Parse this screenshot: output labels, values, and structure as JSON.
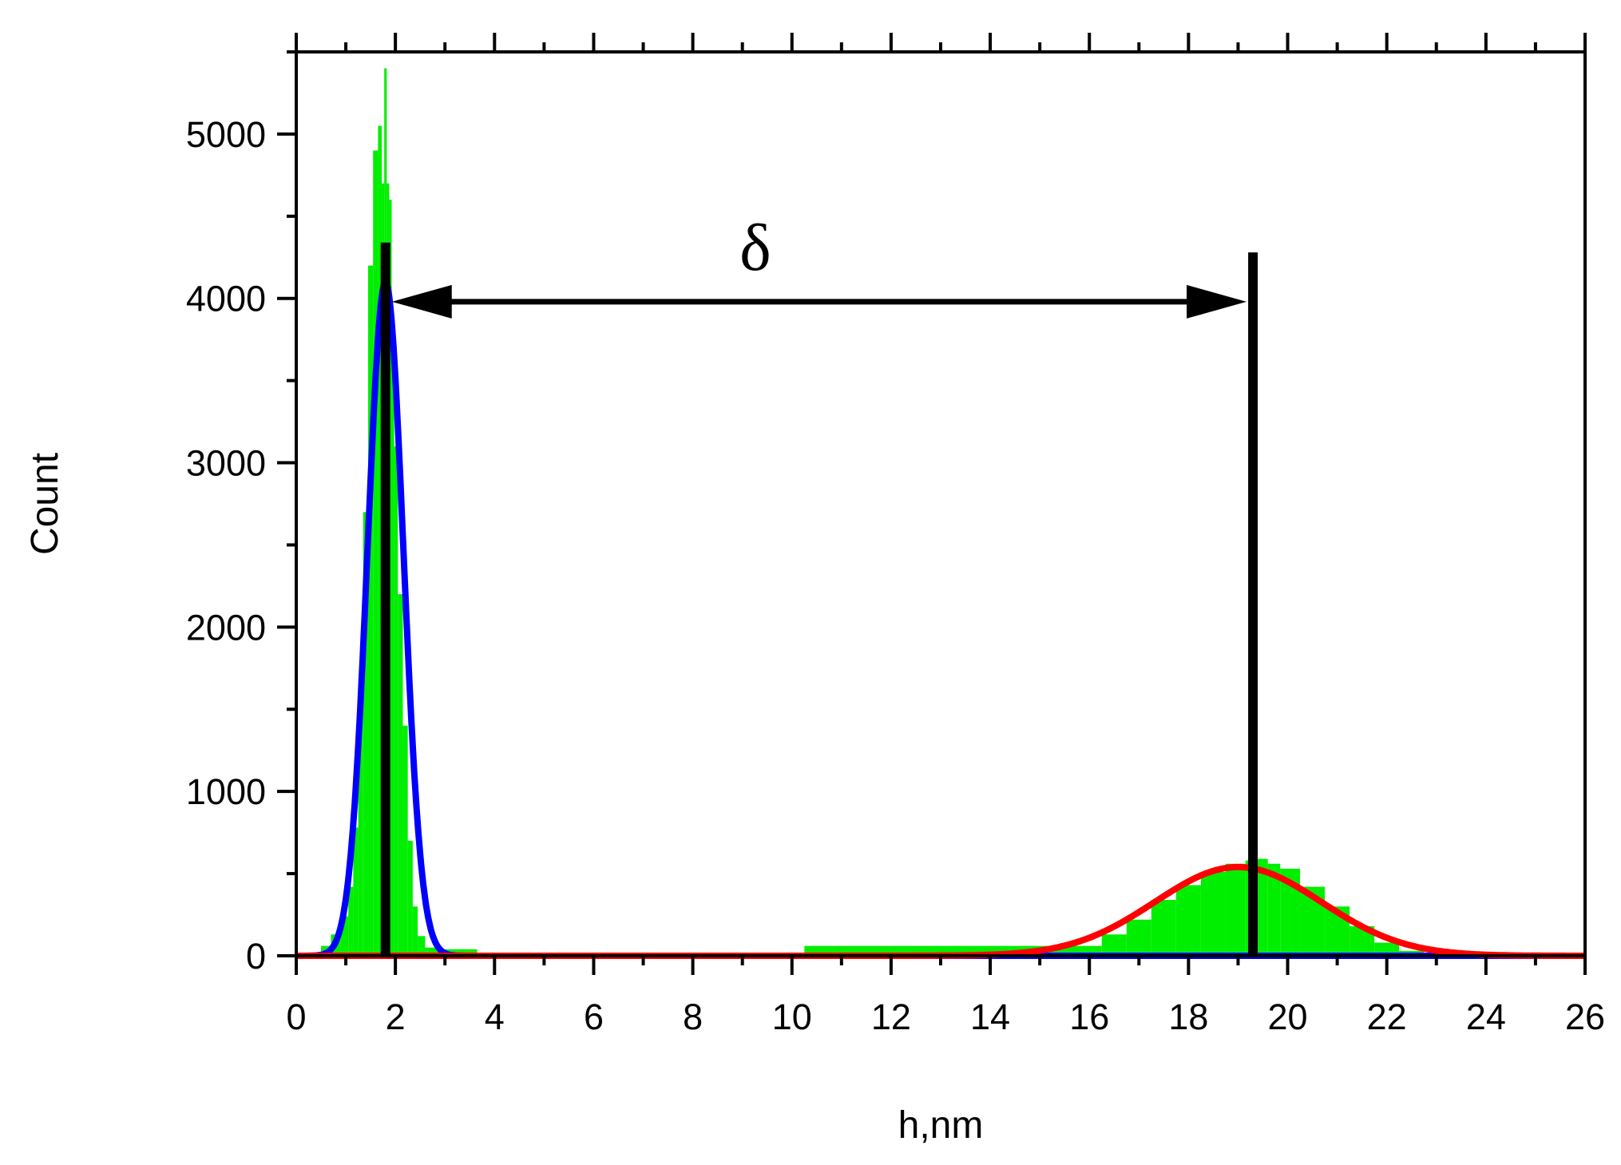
{
  "chart_data": {
    "type": "area",
    "xlabel": "h,nm",
    "ylabel": "Count",
    "xlim": [
      0,
      26
    ],
    "ylim": [
      0,
      5500
    ],
    "x_ticks": [
      "0",
      "2",
      "4",
      "6",
      "8",
      "10",
      "12",
      "14",
      "16",
      "18",
      "20",
      "22",
      "24",
      "26"
    ],
    "y_ticks": [
      "0",
      "1000",
      "2000",
      "3000",
      "4000",
      "5000"
    ],
    "colors": {
      "histogram": "#00ee00",
      "fit1": "#0000ff",
      "fit2": "#ff0000",
      "markers": "#000000"
    },
    "histogram": {
      "x": [
        0.4,
        0.6,
        0.8,
        1.0,
        1.1,
        1.2,
        1.3,
        1.4,
        1.5,
        1.6,
        1.7,
        1.75,
        1.8,
        1.85,
        1.9,
        1.95,
        2.0,
        2.1,
        2.2,
        2.3,
        2.4,
        2.5,
        2.7,
        3.0,
        3.5,
        3.8,
        4.5,
        16.0,
        16.5,
        17.0,
        17.5,
        18.0,
        18.5,
        19.0,
        19.3,
        19.5,
        19.7,
        20.0,
        20.5,
        21.0,
        21.5,
        22.0,
        22.5,
        23.0,
        23.5
      ],
      "values": [
        20,
        60,
        130,
        240,
        420,
        780,
        1500,
        2700,
        4200,
        4900,
        5050,
        4700,
        5400,
        4700,
        4600,
        3800,
        3100,
        2200,
        1400,
        700,
        300,
        120,
        50,
        40,
        40,
        0,
        0,
        60,
        130,
        220,
        340,
        430,
        510,
        560,
        580,
        590,
        560,
        530,
        420,
        300,
        180,
        80,
        30,
        10,
        0
      ]
    },
    "fits": [
      {
        "peak": 1.8,
        "sigma": 0.36,
        "amplitude": 4100
      },
      {
        "peak": 19.0,
        "sigma": 1.68,
        "amplitude": 540
      }
    ],
    "markers": [
      1.8,
      19.3
    ],
    "annotation": {
      "text": "δ",
      "from": 1.8,
      "to": 19.3,
      "y": 3980
    }
  }
}
